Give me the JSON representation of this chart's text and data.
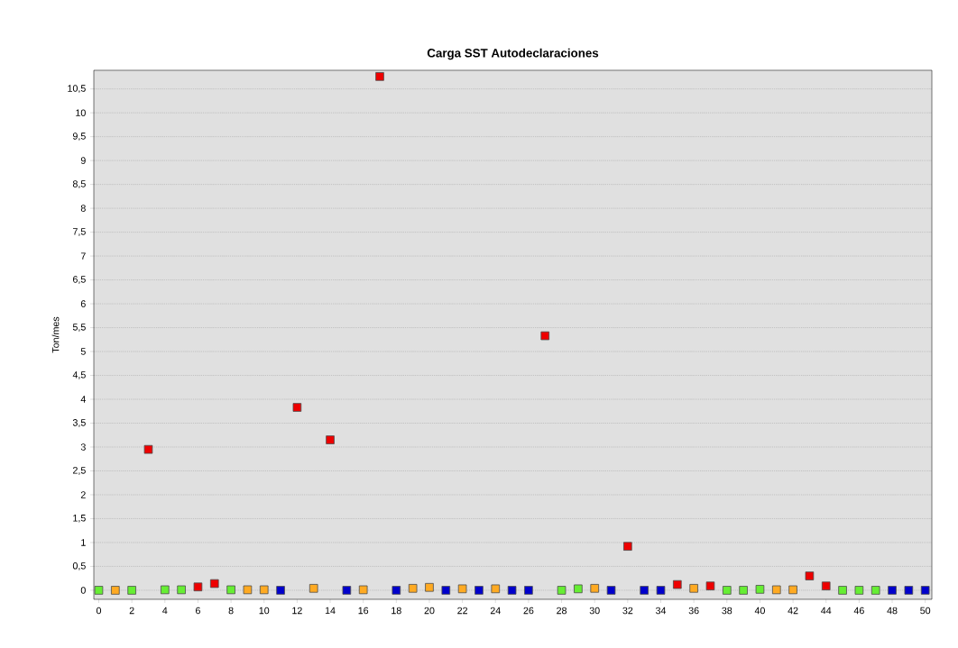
{
  "chart_data": {
    "type": "scatter",
    "title": "Carga SST Autodeclaraciones",
    "ylabel": "Ton/mes",
    "x": [
      0,
      1,
      2,
      3,
      4,
      5,
      6,
      7,
      8,
      9,
      10,
      11,
      12,
      13,
      14,
      15,
      16,
      17,
      18,
      19,
      20,
      21,
      22,
      23,
      24,
      25,
      26,
      27,
      28,
      29,
      30,
      31,
      32,
      33,
      34,
      35,
      36,
      37,
      38,
      39,
      40,
      41,
      42,
      43,
      44,
      45,
      46,
      47,
      48,
      49,
      50
    ],
    "values": [
      0,
      0,
      0,
      2.95,
      0.01,
      0.01,
      0.07,
      0.14,
      0.01,
      0.01,
      0.01,
      0,
      3.83,
      0.04,
      3.15,
      0,
      0.01,
      10.76,
      0,
      0.04,
      0.06,
      0,
      0.03,
      0,
      0.03,
      0,
      0,
      5.33,
      0,
      0.03,
      0.04,
      0,
      0.92,
      0,
      0,
      0.12,
      0.04,
      0.09,
      0,
      0,
      0.02,
      0.01,
      0.01,
      0.3,
      0.09,
      0,
      0,
      0,
      0,
      0,
      0
    ],
    "colors": [
      "#66ee33",
      "#ffaa22",
      "#66ee33",
      "#ee0000",
      "#66ee33",
      "#66ee33",
      "#ee0000",
      "#ee0000",
      "#66ee33",
      "#ffaa22",
      "#ffaa22",
      "#0000cc",
      "#ee0000",
      "#ffaa22",
      "#ee0000",
      "#0000cc",
      "#ffaa22",
      "#ee0000",
      "#0000cc",
      "#ffaa22",
      "#ffaa22",
      "#0000cc",
      "#ffaa22",
      "#0000cc",
      "#ffaa22",
      "#0000cc",
      "#0000cc",
      "#ee0000",
      "#66ee33",
      "#66ee33",
      "#ffaa22",
      "#0000cc",
      "#ee0000",
      "#0000cc",
      "#0000cc",
      "#ee0000",
      "#ffaa22",
      "#ee0000",
      "#66ee33",
      "#66ee33",
      "#66ee33",
      "#ffaa22",
      "#ffaa22",
      "#ee0000",
      "#ee0000",
      "#66ee33",
      "#66ee33",
      "#66ee33",
      "#0000cc",
      "#0000cc",
      "#0000cc"
    ],
    "marker": "square",
    "grid": "y",
    "xlim": [
      -0.3,
      50.4
    ],
    "ylim": [
      -0.19,
      10.89
    ],
    "xticks": [
      0,
      2,
      4,
      6,
      8,
      10,
      12,
      14,
      16,
      18,
      20,
      22,
      24,
      26,
      28,
      30,
      32,
      34,
      36,
      38,
      40,
      42,
      44,
      46,
      48,
      50
    ],
    "yticks": [
      0,
      {
        "value": 0.5,
        "label": "0,5"
      },
      1,
      {
        "value": 1.5,
        "label": "1,5"
      },
      2,
      {
        "value": 2.5,
        "label": "2,5"
      },
      3,
      {
        "value": 3.5,
        "label": "3,5"
      },
      4,
      {
        "value": 4.5,
        "label": "4,5"
      },
      5,
      {
        "value": 5.5,
        "label": "5,5"
      },
      6,
      {
        "value": 6.5,
        "label": "6,5"
      },
      7,
      {
        "value": 7.5,
        "label": "7,5"
      },
      8,
      {
        "value": 8.5,
        "label": "8,5"
      },
      9,
      {
        "value": 9.5,
        "label": "9,5"
      },
      10,
      {
        "value": 10.5,
        "label": "10,5"
      }
    ]
  }
}
